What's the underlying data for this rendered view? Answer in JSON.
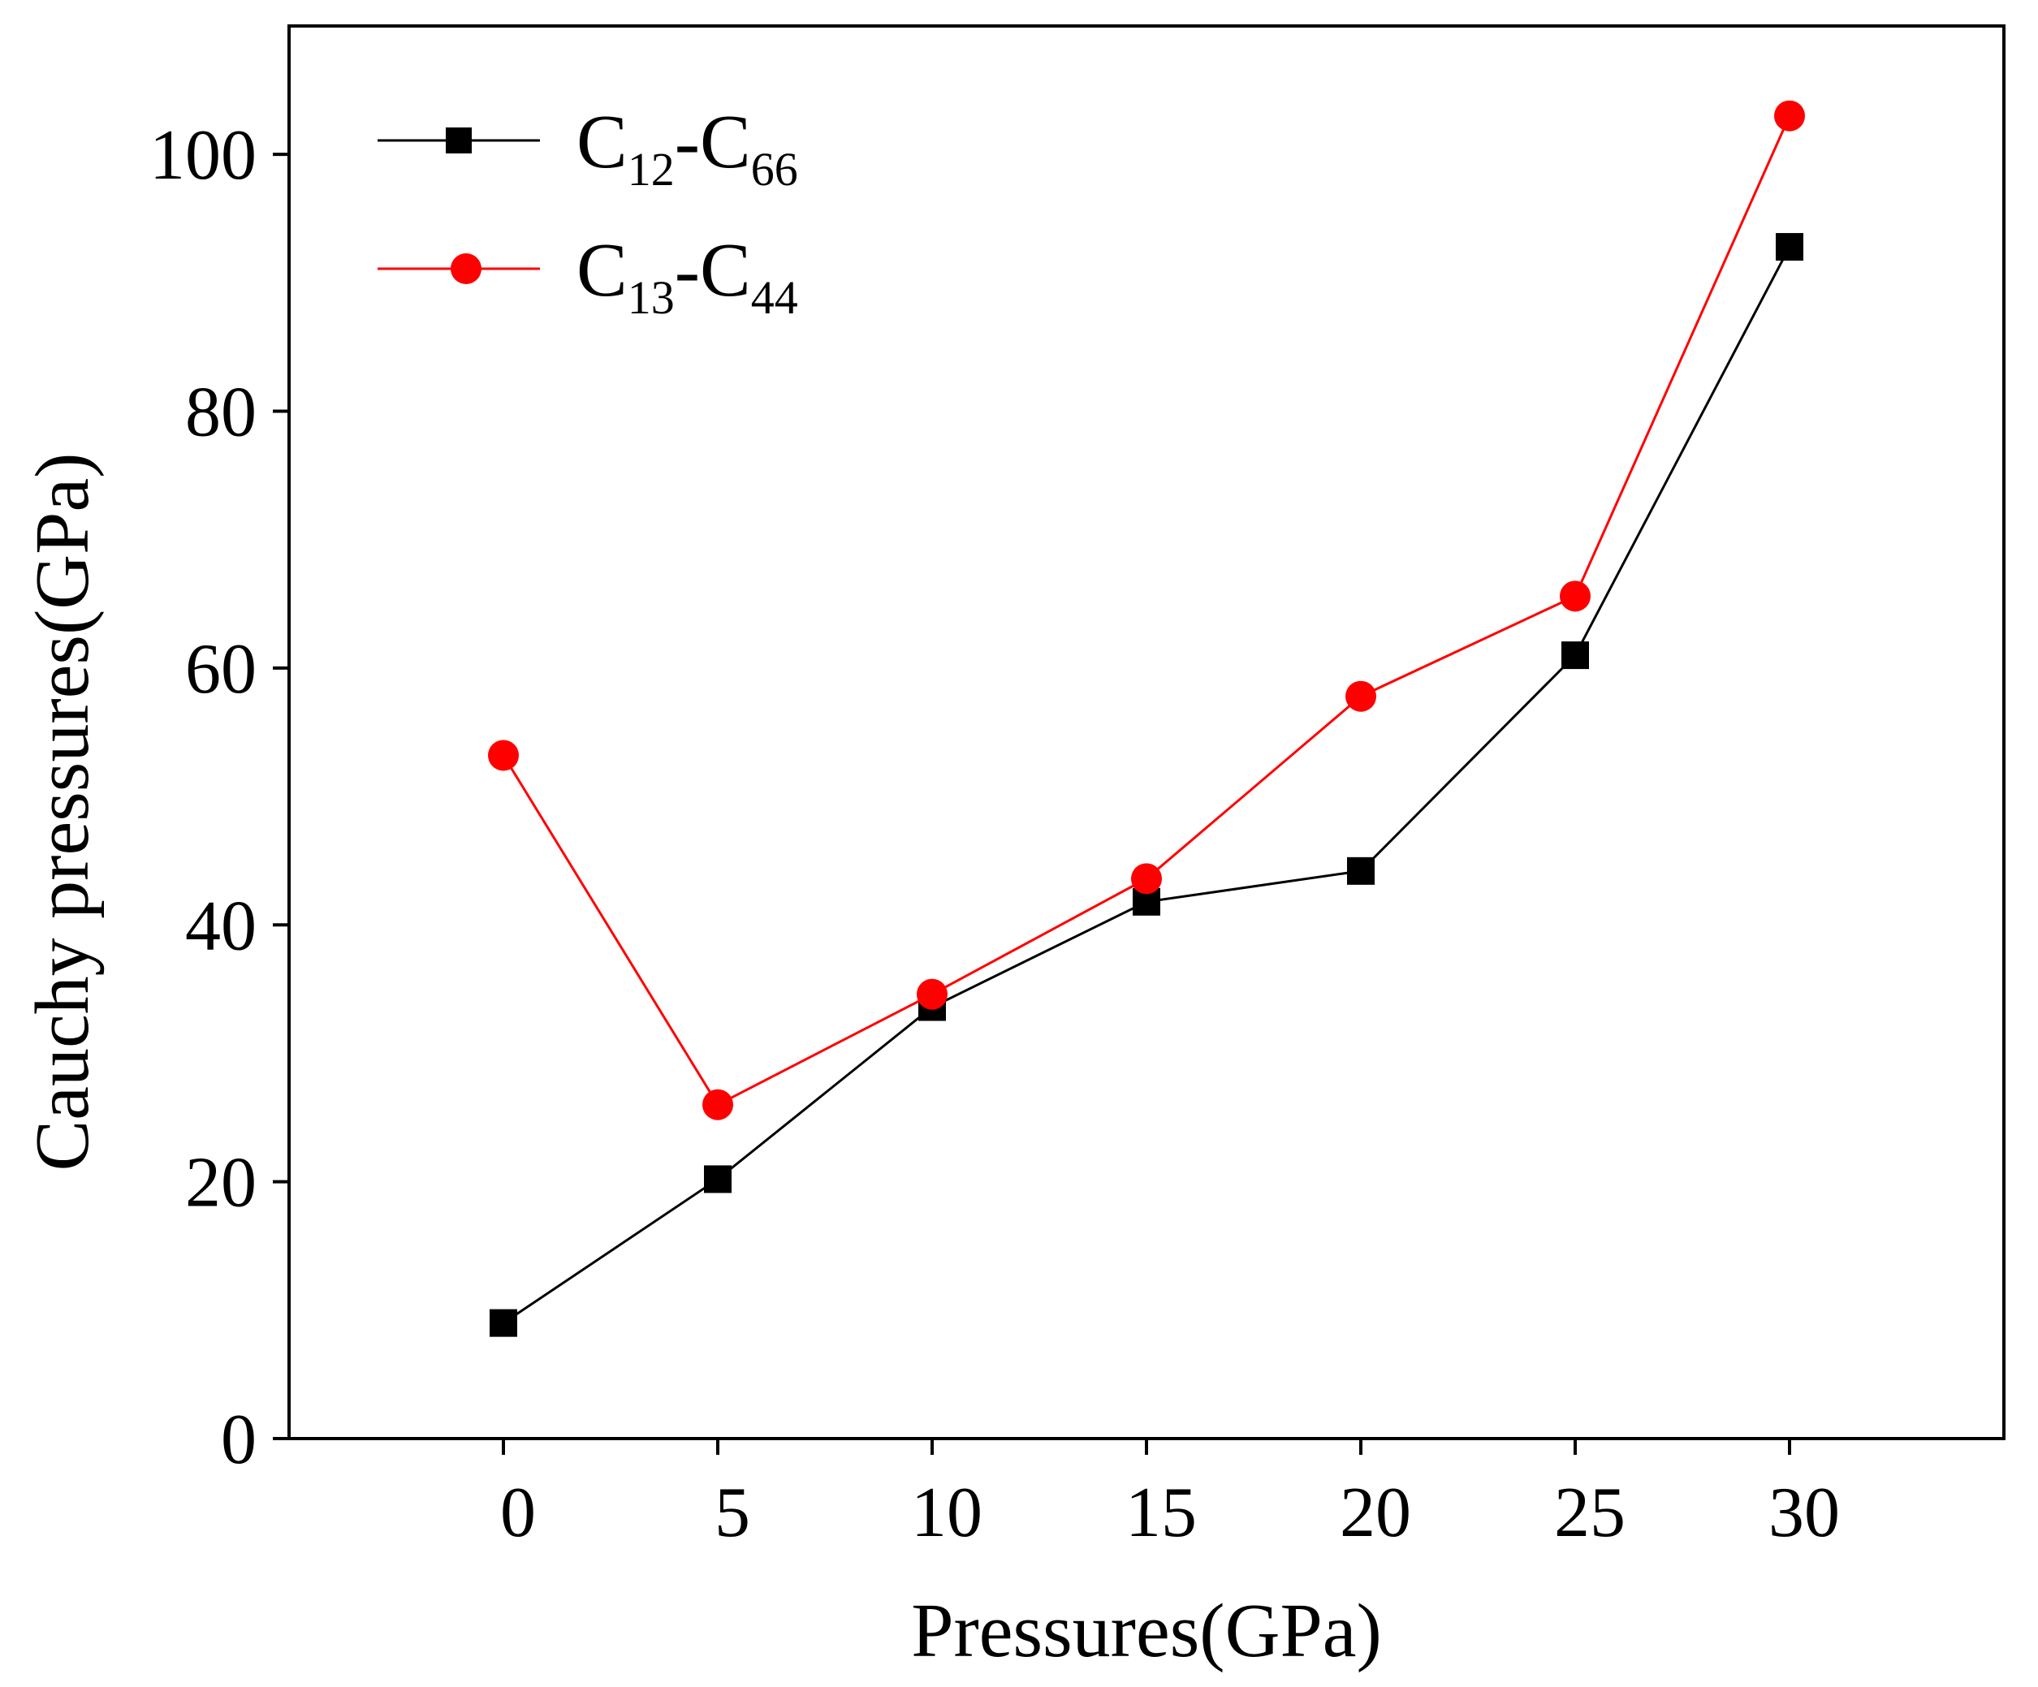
{
  "chart_data": {
    "type": "line",
    "title": "",
    "xlabel": "Pressures(GPa)",
    "ylabel": "Cauchy pressures(GPa)",
    "xlim": [
      -5,
      35
    ],
    "ylim": [
      0,
      110
    ],
    "xticks": [
      0,
      5,
      10,
      15,
      20,
      25,
      30
    ],
    "yticks": [
      0,
      20,
      40,
      60,
      80,
      100
    ],
    "x": [
      0,
      5,
      10,
      15,
      20,
      25,
      30
    ],
    "legend_position": "top-left",
    "series": [
      {
        "name": "C12-C66",
        "label_main_1": "C",
        "label_sub_1": "12",
        "label_sep": "-C",
        "label_sub_2": "66",
        "marker": "square",
        "color": "#000000",
        "values": [
          9.0,
          20.2,
          33.6,
          41.8,
          44.2,
          61.0,
          92.8
        ]
      },
      {
        "name": "C13-C44",
        "label_main_1": "C",
        "label_sub_1": "13",
        "label_sep": "-C",
        "label_sub_2": "44",
        "marker": "circle",
        "color": "#ff0000",
        "values": [
          53.2,
          26.0,
          34.6,
          43.6,
          57.8,
          65.6,
          103.0
        ]
      }
    ]
  }
}
